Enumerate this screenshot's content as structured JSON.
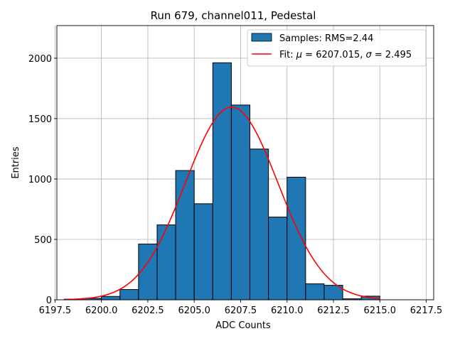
{
  "chart_data": {
    "type": "bar",
    "title": "Run 679, channel011, Pedestal",
    "xlabel": "ADC Counts",
    "ylabel": "Entries",
    "xlim": [
      6197.6,
      6217.9
    ],
    "ylim": [
      0,
      2270
    ],
    "grid": true,
    "legend_position": "top-right",
    "x_ticks": [
      6197.5,
      6200.0,
      6202.5,
      6205.0,
      6207.5,
      6210.0,
      6212.5,
      6215.0,
      6217.5
    ],
    "x_tick_labels": [
      "6197.5",
      "6200.0",
      "6202.5",
      "6205.0",
      "6207.5",
      "6210.0",
      "6212.5",
      "6215.0",
      "6217.5"
    ],
    "y_ticks": [
      0,
      500,
      1000,
      1500,
      2000
    ],
    "y_tick_labels": [
      "0",
      "500",
      "1000",
      "1500",
      "2000"
    ],
    "histogram": {
      "name": "Samples: RMS=2.44",
      "color": "#1f77b4",
      "edge_color": "#000000",
      "bin_edges": [
        6198,
        6199,
        6200,
        6201,
        6202,
        6203,
        6204,
        6205,
        6206,
        6207,
        6208,
        6209,
        6210,
        6211,
        6212,
        6213,
        6214,
        6215
      ],
      "counts": [
        5,
        12,
        28,
        85,
        462,
        620,
        1070,
        795,
        1962,
        1612,
        1248,
        685,
        1015,
        132,
        120,
        8,
        30
      ]
    },
    "fit": {
      "name": "Fit: μ = 6207.015, σ = 2.495",
      "label_parts": [
        "Fit: ",
        "μ",
        " = 6207.015, ",
        "σ",
        " = 2.495"
      ],
      "color": "#ff0000",
      "mu": 6207.015,
      "sigma": 2.495,
      "amplitude": 1595,
      "x_range": [
        6198,
        6215
      ]
    }
  }
}
